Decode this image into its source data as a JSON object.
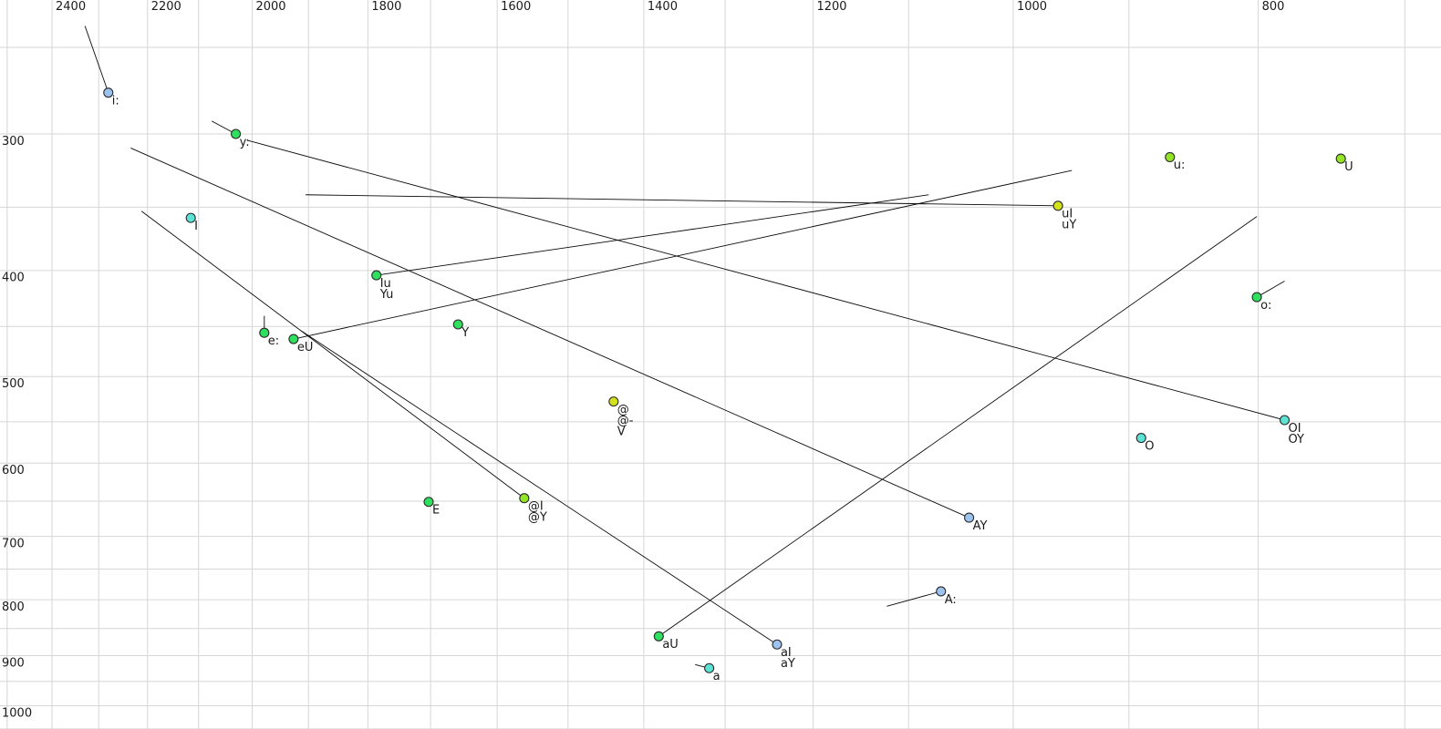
{
  "chart_data": {
    "type": "scatter",
    "title": "",
    "xlabel": "",
    "ylabel": "",
    "x_axis": {
      "scale": "log",
      "reversed": true,
      "tick_labels": [
        2400,
        2200,
        2000,
        1800,
        1600,
        1400,
        1200,
        1000,
        800
      ],
      "gridline_values": [
        2500,
        2400,
        2300,
        2200,
        2100,
        2000,
        1900,
        1800,
        1700,
        1600,
        1500,
        1400,
        1300,
        1200,
        1100,
        1000,
        900,
        800,
        700
      ],
      "range": [
        2530,
        670
      ]
    },
    "y_axis": {
      "scale": "log",
      "increases_downward": true,
      "tick_labels": [
        300,
        400,
        500,
        600,
        700,
        800,
        900,
        1000
      ],
      "gridline_values": [
        250,
        300,
        350,
        400,
        450,
        500,
        550,
        600,
        650,
        700,
        750,
        800,
        850,
        900,
        950,
        1000,
        1050
      ],
      "range": [
        226,
        1052
      ]
    },
    "grid": true,
    "legend": false,
    "series_note": "Each vowel: marker at (f2,f1); optional trajectory tail line to (tail_f2,tail_f1). Units Hz.",
    "vowels": [
      {
        "labels": [
          "i:"
        ],
        "color_group": "blue",
        "f2": 2280,
        "f1": 275,
        "tail": {
          "f2": 2329,
          "f1": 239
        }
      },
      {
        "labels": [
          "y:"
        ],
        "color_group": "green",
        "f2": 2030,
        "f1": 300,
        "tail": {
          "f2": 2075,
          "f1": 292
        }
      },
      {
        "labels": [
          "I"
        ],
        "color_group": "cyan",
        "f2": 2115,
        "f1": 358,
        "tail": null
      },
      {
        "labels": [
          "u:"
        ],
        "color_group": "chartreuse",
        "f2": 867,
        "f1": 315,
        "tail": null
      },
      {
        "labels": [
          "U"
        ],
        "color_group": "chartreuse",
        "f2": 742,
        "f1": 316,
        "tail": null
      },
      {
        "labels": [
          "uI",
          "uY"
        ],
        "color_group": "yellow",
        "f2": 960,
        "f1": 349,
        "tail": {
          "f2": 1905,
          "f1": 341
        }
      },
      {
        "labels": [
          "Iu",
          "Yu"
        ],
        "color_group": "green",
        "f2": 1786,
        "f1": 404,
        "tail": {
          "f2": 1080,
          "f1": 341
        }
      },
      {
        "labels": [
          "o:"
        ],
        "color_group": "green",
        "f2": 801,
        "f1": 423,
        "tail": {
          "f2": 781,
          "f1": 409
        }
      },
      {
        "labels": [
          "e:"
        ],
        "color_group": "green",
        "f2": 1978,
        "f1": 456,
        "tail": {
          "f2": 1978,
          "f1": 440
        }
      },
      {
        "labels": [
          "eU"
        ],
        "color_group": "green",
        "f2": 1926,
        "f1": 462,
        "tail": {
          "f2": 948,
          "f1": 324
        }
      },
      {
        "labels": [
          "Y"
        ],
        "color_group": "green",
        "f2": 1658,
        "f1": 448,
        "tail": null
      },
      {
        "labels": [
          "@",
          "@-",
          "V"
        ],
        "color_group": "yellow",
        "f2": 1439,
        "f1": 527,
        "tail": null
      },
      {
        "labels": [
          "OI",
          "OY"
        ],
        "color_group": "cyan",
        "f2": 781,
        "f1": 548,
        "tail": {
          "f2": 2009,
          "f1": 304
        }
      },
      {
        "labels": [
          "O"
        ],
        "color_group": "cyan",
        "f2": 890,
        "f1": 569,
        "tail": null
      },
      {
        "labels": [
          "E"
        ],
        "color_group": "green",
        "f2": 1703,
        "f1": 651,
        "tail": null
      },
      {
        "labels": [
          "@I",
          "@Y"
        ],
        "color_group": "chartreuse",
        "f2": 1561,
        "f1": 646,
        "tail": {
          "f2": 2212,
          "f1": 353
        }
      },
      {
        "labels": [
          "AY"
        ],
        "color_group": "blue",
        "f2": 1041,
        "f1": 673,
        "tail": {
          "f2": 2234,
          "f1": 309
        }
      },
      {
        "labels": [
          "A:"
        ],
        "color_group": "blue",
        "f2": 1068,
        "f1": 786,
        "tail": {
          "f2": 1122,
          "f1": 811
        }
      },
      {
        "labels": [
          "aU"
        ],
        "color_group": "green",
        "f2": 1381,
        "f1": 864,
        "tail": {
          "f2": 801,
          "f1": 357
        }
      },
      {
        "labels": [
          "aI",
          "aY"
        ],
        "color_group": "blue",
        "f2": 1240,
        "f1": 879,
        "tail": {
          "f2": 1913,
          "f1": 454
        }
      },
      {
        "labels": [
          "a"
        ],
        "color_group": "cyan",
        "f2": 1319,
        "f1": 924,
        "tail": {
          "f2": 1336,
          "f1": 917
        }
      }
    ]
  },
  "colors": {
    "background": "#ffffff",
    "gridline": "#d6d6d6",
    "trajectory_line": "#0a0a0a",
    "dot_border": "#2b2b2b",
    "label_text": "#1a1a1a",
    "groups": {
      "blue": "#9cc2ee",
      "green": "#2ee05e",
      "cyan": "#5ce3d6",
      "chartreuse": "#94e426",
      "yellow": "#d2e31c"
    }
  }
}
